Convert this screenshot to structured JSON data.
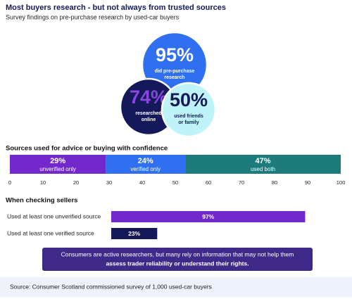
{
  "header": {
    "title": "Most buyers research - but not always from trusted sources",
    "subtitle": "Survey findings on pre-purchase research by used-car buyers"
  },
  "chart_data": [
    {
      "type": "bubble",
      "values": [
        95,
        74,
        50
      ],
      "value_labels": [
        "95%",
        "74%",
        "50%"
      ],
      "labels": [
        [
          "did pre-purchase",
          "research"
        ],
        [
          "researched",
          "online"
        ],
        [
          "used friends",
          "or family"
        ]
      ],
      "colors": [
        "#2f6ff0",
        "#15195a",
        "#bdf3f9"
      ],
      "text_colors": [
        "#ffffff",
        "#8b45e0",
        "#15195a"
      ],
      "label_colors": [
        "#ffffff",
        "#ffffff",
        "#15195a"
      ]
    },
    {
      "type": "stacked_bar",
      "title": "Sources used for advice or buying with confidence",
      "series": [
        {
          "name": "unverified only",
          "color": "#7328cc",
          "values": [
            29
          ],
          "value_labels": [
            "29%"
          ]
        },
        {
          "name": "verified only",
          "color": "#2f6ff0",
          "values": [
            24
          ],
          "value_labels": [
            "24%"
          ]
        },
        {
          "name": "used both",
          "color": "#1e7b7b",
          "values": [
            47
          ],
          "value_labels": [
            "47%"
          ]
        }
      ],
      "xlim": [
        0,
        100
      ],
      "xticks": [
        0,
        10,
        20,
        30,
        40,
        50,
        60,
        70,
        80,
        90,
        100
      ]
    },
    {
      "type": "bar",
      "title": "When checking sellers",
      "categories": [
        "Used at least one unverified source",
        "Used at least one verified source"
      ],
      "values": [
        97,
        23
      ],
      "value_labels": [
        "97%",
        "23%"
      ],
      "colors": [
        "#7328cc",
        "#15195a"
      ]
    }
  ],
  "callout": {
    "lines": [
      "Consumers are active researchers, but many rely on information that may not help them",
      "assess trader reliability or understand their rights."
    ]
  },
  "source": "Source: Consumer Scotland commissioned survey of 1,000 used-car buyers"
}
